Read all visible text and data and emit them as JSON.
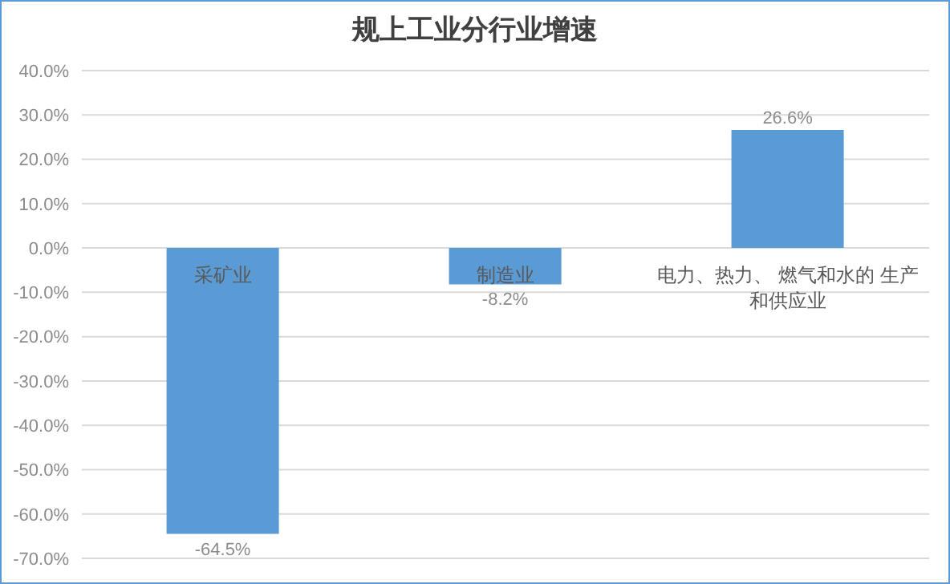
{
  "chart_data": {
    "type": "bar",
    "title": "规上工业分行业增速",
    "categories": [
      "采矿业",
      "制造业",
      "电力、热力、 燃气和水的 生产和供应业"
    ],
    "values": [
      -64.5,
      -8.2,
      26.6
    ],
    "color": "#5b9bd5",
    "value_labels": [
      "-64.5%",
      "-8.2%",
      "26.6%"
    ],
    "ylim": [
      -70,
      40
    ],
    "yticks": [
      {
        "value": -70,
        "label": "-70.0%"
      },
      {
        "value": -60,
        "label": "-60.0%"
      },
      {
        "value": -50,
        "label": "-50.0%"
      },
      {
        "value": -40,
        "label": "-40.0%"
      },
      {
        "value": -30,
        "label": "-30.0%"
      },
      {
        "value": -20,
        "label": "-20.0%"
      },
      {
        "value": -10,
        "label": "-10.0%"
      },
      {
        "value": 0,
        "label": "0.0%"
      },
      {
        "value": 10,
        "label": "10.0%"
      },
      {
        "value": 20,
        "label": "20.0%"
      },
      {
        "value": 30,
        "label": "30.0%"
      },
      {
        "value": 40,
        "label": "40.0%"
      }
    ],
    "grid": "y"
  }
}
